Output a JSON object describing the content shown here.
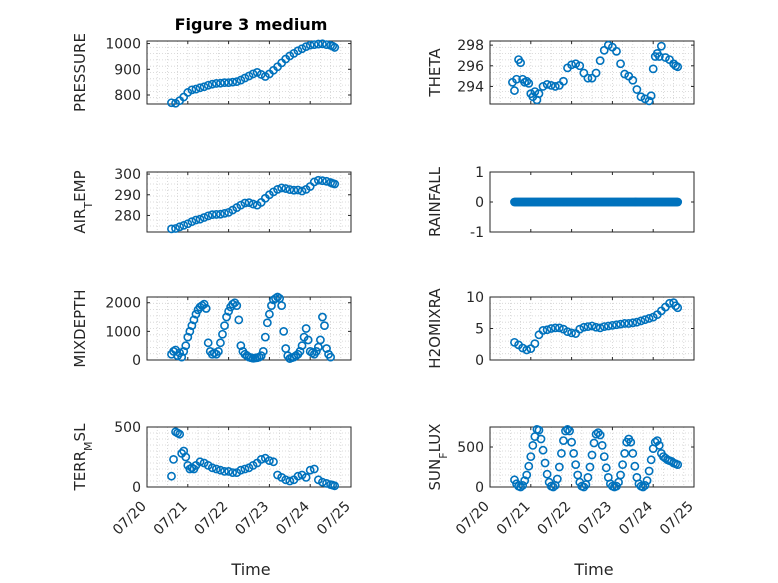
{
  "figure": {
    "title": "Figure 3 medium",
    "marker_color": "#0072BD",
    "x_tick_labels": [
      "07/20",
      "07/21",
      "07/22",
      "07/23",
      "07/24",
      "07/25"
    ],
    "x_label": "Time"
  },
  "chart_data": [
    {
      "type": "scatter",
      "ylabel": "PRESSURE",
      "ylim": [
        765,
        1010
      ],
      "yticks": [
        800,
        900,
        1000
      ],
      "xlim": [
        0,
        5
      ],
      "grid": true,
      "x": [
        0.6,
        0.7,
        0.8,
        0.9,
        1.0,
        1.1,
        1.2,
        1.3,
        1.4,
        1.5,
        1.6,
        1.7,
        1.8,
        1.9,
        2.0,
        2.1,
        2.2,
        2.3,
        2.4,
        2.5,
        2.6,
        2.7,
        2.8,
        2.9,
        3.0,
        3.1,
        3.2,
        3.3,
        3.4,
        3.5,
        3.6,
        3.7,
        3.8,
        3.9,
        4.0,
        4.1,
        4.2,
        4.3,
        4.4,
        4.5,
        4.55,
        4.6
      ],
      "y": [
        770,
        768,
        778,
        792,
        810,
        820,
        823,
        828,
        832,
        838,
        842,
        845,
        846,
        848,
        848,
        850,
        852,
        858,
        866,
        874,
        882,
        888,
        880,
        872,
        882,
        896,
        910,
        925,
        940,
        952,
        962,
        972,
        980,
        988,
        994,
        996,
        998,
        999,
        996,
        993,
        990,
        985
      ]
    },
    {
      "type": "scatter",
      "ylabel": "THETA",
      "ylim": [
        292.3,
        298.4
      ],
      "yticks": [
        294,
        296,
        298
      ],
      "xlim": [
        0,
        5
      ],
      "grid": true,
      "x": [
        0.55,
        0.6,
        0.65,
        0.7,
        0.75,
        0.8,
        0.85,
        0.9,
        0.95,
        1.0,
        1.05,
        1.1,
        1.15,
        1.2,
        1.3,
        1.4,
        1.5,
        1.6,
        1.7,
        1.8,
        1.9,
        2.0,
        2.1,
        2.2,
        2.3,
        2.4,
        2.5,
        2.6,
        2.7,
        2.8,
        2.9,
        3.0,
        3.1,
        3.2,
        3.3,
        3.4,
        3.5,
        3.6,
        3.7,
        3.8,
        3.9,
        3.95,
        4.0,
        4.05,
        4.1,
        4.15,
        4.2,
        4.3,
        4.4,
        4.5,
        4.55,
        4.6
      ],
      "y": [
        294.4,
        293.6,
        294.7,
        296.6,
        296.3,
        294.7,
        294.4,
        294.5,
        294.3,
        293.3,
        293.0,
        293.5,
        292.7,
        293.3,
        294.0,
        294.2,
        294.1,
        294.0,
        294.1,
        294.5,
        295.8,
        296.1,
        296.2,
        296.0,
        295.3,
        294.8,
        294.8,
        295.3,
        296.5,
        297.5,
        298.0,
        297.8,
        297.4,
        296.2,
        295.2,
        295.0,
        294.6,
        293.7,
        293.0,
        292.8,
        292.6,
        293.1,
        295.7,
        296.9,
        297.2,
        296.9,
        297.9,
        296.8,
        296.6,
        296.2,
        296.0,
        295.9
      ]
    },
    {
      "type": "scatter",
      "ylabel": "AIR_TEMP",
      "ylim": [
        272,
        301
      ],
      "yticks": [
        280,
        290,
        300
      ],
      "xlim": [
        0,
        5
      ],
      "grid": true,
      "x": [
        0.6,
        0.7,
        0.8,
        0.9,
        1.0,
        1.1,
        1.2,
        1.3,
        1.4,
        1.5,
        1.6,
        1.7,
        1.8,
        1.9,
        2.0,
        2.1,
        2.2,
        2.3,
        2.4,
        2.5,
        2.6,
        2.7,
        2.8,
        2.9,
        3.0,
        3.1,
        3.2,
        3.3,
        3.4,
        3.5,
        3.6,
        3.7,
        3.8,
        3.9,
        4.0,
        4.1,
        4.2,
        4.3,
        4.4,
        4.5,
        4.55,
        4.6
      ],
      "y": [
        273.5,
        273.7,
        274.5,
        275.2,
        276.0,
        277.0,
        277.8,
        278.2,
        279.0,
        279.8,
        280.4,
        280.5,
        280.6,
        281.0,
        281.5,
        282.6,
        283.8,
        285.0,
        286.0,
        286.2,
        285.5,
        285.0,
        286.3,
        288.3,
        290.0,
        291.4,
        292.6,
        293.3,
        293.0,
        292.5,
        292.2,
        292.3,
        291.8,
        292.6,
        294.0,
        296.2,
        297.0,
        296.8,
        296.5,
        295.9,
        295.5,
        295.2
      ]
    },
    {
      "type": "scatter",
      "ylabel": "RAINFALL",
      "ylim": [
        -1,
        1
      ],
      "yticks": [
        -1,
        0,
        1
      ],
      "xlim": [
        0,
        5
      ],
      "grid": false,
      "x_range": [
        0.6,
        4.6
      ],
      "constant_y": 0
    },
    {
      "type": "scatter",
      "ylabel": "MIXDEPTH",
      "ylim": [
        0,
        2200
      ],
      "yticks": [
        0,
        1000,
        2000
      ],
      "xlim": [
        0,
        5
      ],
      "grid": true,
      "x": [
        0.6,
        0.65,
        0.7,
        0.75,
        0.8,
        0.85,
        0.9,
        0.95,
        1.0,
        1.05,
        1.1,
        1.15,
        1.2,
        1.25,
        1.3,
        1.35,
        1.4,
        1.45,
        1.5,
        1.55,
        1.6,
        1.65,
        1.7,
        1.75,
        1.8,
        1.85,
        1.9,
        1.95,
        2.0,
        2.05,
        2.1,
        2.15,
        2.2,
        2.25,
        2.3,
        2.35,
        2.4,
        2.45,
        2.5,
        2.55,
        2.6,
        2.65,
        2.7,
        2.75,
        2.8,
        2.85,
        2.9,
        2.95,
        3.0,
        3.05,
        3.1,
        3.15,
        3.2,
        3.25,
        3.3,
        3.35,
        3.4,
        3.45,
        3.5,
        3.55,
        3.6,
        3.65,
        3.7,
        3.75,
        3.8,
        3.85,
        3.9,
        3.95,
        4.0,
        4.05,
        4.1,
        4.15,
        4.2,
        4.25,
        4.3,
        4.35,
        4.4,
        4.45,
        4.5
      ],
      "y": [
        200,
        300,
        350,
        150,
        250,
        100,
        300,
        500,
        800,
        1000,
        1200,
        1400,
        1600,
        1750,
        1850,
        1900,
        1950,
        1800,
        600,
        300,
        200,
        250,
        200,
        300,
        600,
        900,
        1200,
        1500,
        1700,
        1850,
        1950,
        2000,
        1900,
        1400,
        500,
        300,
        200,
        150,
        100,
        80,
        60,
        70,
        80,
        100,
        150,
        300,
        800,
        1300,
        1600,
        1900,
        2100,
        2150,
        2200,
        2150,
        1900,
        1000,
        400,
        150,
        50,
        80,
        100,
        150,
        200,
        300,
        500,
        800,
        1100,
        700,
        300,
        250,
        200,
        300,
        450,
        700,
        1500,
        1200,
        400,
        200,
        100
      ]
    },
    {
      "type": "scatter",
      "ylabel": "H2OMIXRA",
      "ylim": [
        0,
        10
      ],
      "yticks": [
        0,
        5,
        10
      ],
      "xlim": [
        0,
        5
      ],
      "grid": true,
      "x": [
        0.6,
        0.7,
        0.8,
        0.9,
        1.0,
        1.1,
        1.2,
        1.3,
        1.4,
        1.5,
        1.6,
        1.7,
        1.8,
        1.9,
        2.0,
        2.1,
        2.2,
        2.3,
        2.4,
        2.5,
        2.6,
        2.7,
        2.8,
        2.9,
        3.0,
        3.1,
        3.2,
        3.3,
        3.4,
        3.5,
        3.6,
        3.7,
        3.8,
        3.9,
        4.0,
        4.1,
        4.2,
        4.3,
        4.4,
        4.5,
        4.55,
        4.6
      ],
      "y": [
        2.8,
        2.4,
        1.9,
        1.6,
        1.8,
        2.6,
        4.0,
        4.7,
        4.8,
        5.0,
        5.1,
        5.1,
        4.9,
        4.5,
        4.3,
        4.2,
        4.9,
        5.2,
        5.3,
        5.4,
        5.2,
        5.1,
        5.3,
        5.4,
        5.5,
        5.6,
        5.7,
        5.8,
        5.8,
        5.9,
        6.0,
        6.2,
        6.4,
        6.6,
        6.8,
        7.2,
        7.8,
        8.4,
        9.0,
        9.1,
        8.6,
        8.3
      ]
    },
    {
      "type": "scatter",
      "ylabel": "TERR_MSL",
      "ylim": [
        0,
        500
      ],
      "yticks": [
        0,
        500
      ],
      "xlim": [
        0,
        5
      ],
      "grid": true,
      "x": [
        0.6,
        0.65,
        0.7,
        0.75,
        0.8,
        0.85,
        0.9,
        0.95,
        1.0,
        1.05,
        1.1,
        1.15,
        1.2,
        1.3,
        1.4,
        1.5,
        1.6,
        1.7,
        1.8,
        1.9,
        2.0,
        2.1,
        2.2,
        2.3,
        2.4,
        2.5,
        2.6,
        2.7,
        2.8,
        2.9,
        3.0,
        3.1,
        3.2,
        3.3,
        3.4,
        3.5,
        3.6,
        3.7,
        3.8,
        3.9,
        4.0,
        4.1,
        4.2,
        4.3,
        4.4,
        4.5,
        4.55,
        4.6
      ],
      "y": [
        90,
        230,
        460,
        450,
        440,
        280,
        300,
        250,
        180,
        150,
        160,
        150,
        180,
        210,
        200,
        180,
        160,
        150,
        140,
        130,
        130,
        120,
        120,
        140,
        150,
        160,
        180,
        200,
        230,
        240,
        220,
        210,
        100,
        80,
        60,
        50,
        60,
        90,
        100,
        80,
        140,
        150,
        60,
        40,
        30,
        20,
        15,
        10
      ]
    },
    {
      "type": "scatter",
      "ylabel": "SUN_FLUX",
      "ylim": [
        0,
        750
      ],
      "yticks": [
        0,
        500
      ],
      "xlim": [
        0,
        5
      ],
      "grid": true,
      "x": [
        0.6,
        0.65,
        0.7,
        0.75,
        0.8,
        0.85,
        0.9,
        0.95,
        1.0,
        1.05,
        1.1,
        1.15,
        1.2,
        1.25,
        1.3,
        1.35,
        1.4,
        1.45,
        1.5,
        1.55,
        1.6,
        1.65,
        1.7,
        1.75,
        1.8,
        1.85,
        1.9,
        1.95,
        2.0,
        2.05,
        2.1,
        2.15,
        2.2,
        2.25,
        2.3,
        2.35,
        2.4,
        2.45,
        2.5,
        2.55,
        2.6,
        2.65,
        2.7,
        2.75,
        2.8,
        2.85,
        2.9,
        2.95,
        3.0,
        3.05,
        3.1,
        3.15,
        3.2,
        3.25,
        3.3,
        3.35,
        3.4,
        3.45,
        3.5,
        3.55,
        3.6,
        3.65,
        3.7,
        3.75,
        3.8,
        3.85,
        3.9,
        3.95,
        4.0,
        4.05,
        4.1,
        4.15,
        4.2,
        4.25,
        4.3,
        4.35,
        4.4,
        4.45,
        4.5,
        4.55,
        4.6
      ],
      "y": [
        90,
        40,
        10,
        0,
        20,
        80,
        150,
        260,
        380,
        520,
        630,
        720,
        710,
        600,
        460,
        300,
        160,
        60,
        10,
        0,
        20,
        100,
        250,
        420,
        580,
        700,
        720,
        700,
        560,
        420,
        280,
        150,
        60,
        10,
        0,
        30,
        120,
        250,
        400,
        550,
        660,
        680,
        650,
        520,
        380,
        240,
        120,
        40,
        10,
        0,
        10,
        60,
        150,
        280,
        420,
        560,
        600,
        560,
        420,
        260,
        120,
        40,
        10,
        0,
        20,
        80,
        200,
        340,
        480,
        560,
        580,
        520,
        420,
        380,
        360,
        340,
        330,
        320,
        300,
        290,
        280
      ]
    }
  ]
}
